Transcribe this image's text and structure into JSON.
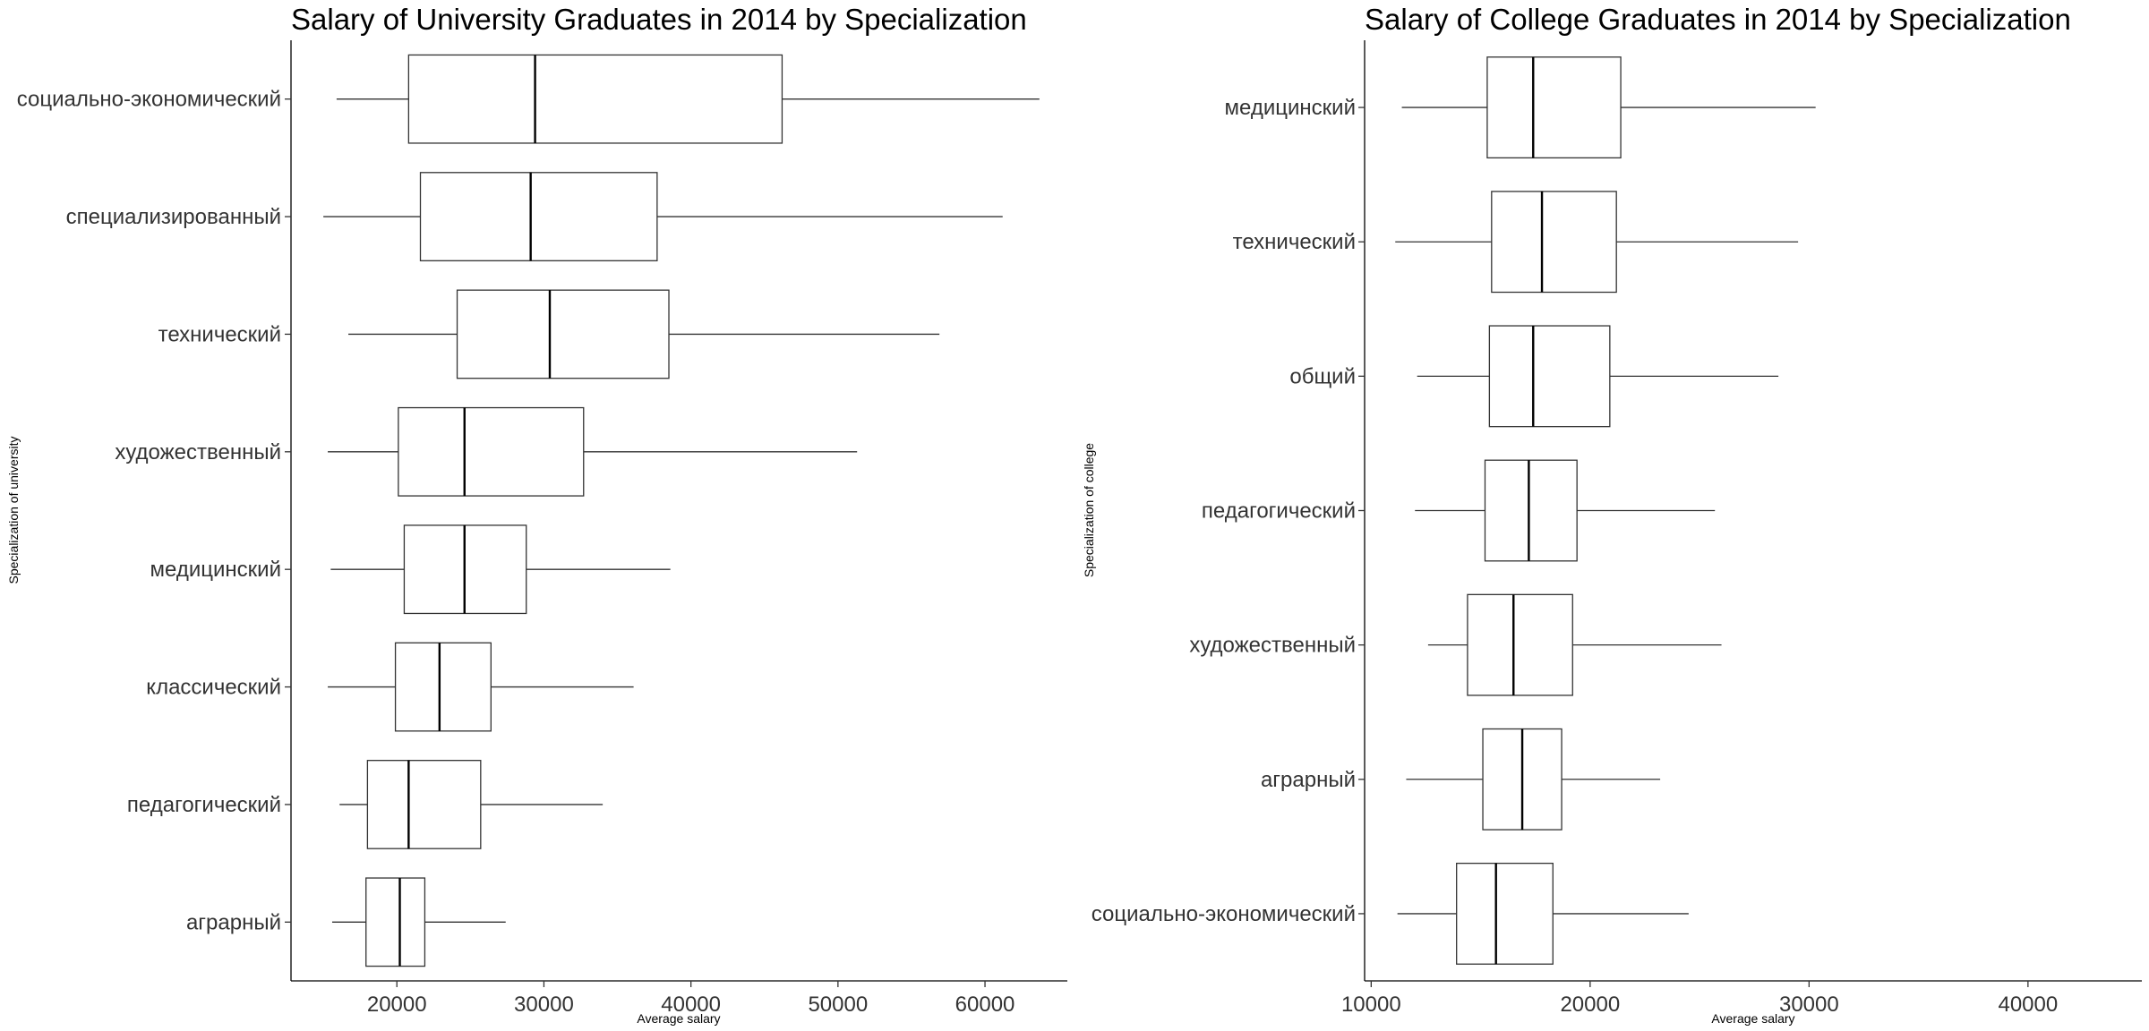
{
  "chart_data": [
    {
      "type": "boxplot",
      "title": "Salary of University Graduates in 2014 by Specialization",
      "xlabel": "Average salary",
      "ylabel": "Specialization of university",
      "xticks": [
        20000,
        30000,
        40000,
        50000,
        60000
      ],
      "xlim": [
        12800,
        65600
      ],
      "grid": false,
      "legend": "none",
      "categories": [
        "социально-экономический",
        "специализированный",
        "технический",
        "художественный",
        "медицинский",
        "классический",
        "педагогический",
        "аграрный"
      ],
      "boxes": [
        {
          "category": "социально-экономический",
          "whisker_low": 15900,
          "q1": 20800,
          "median": 29400,
          "q3": 46200,
          "whisker_high": 63700
        },
        {
          "category": "специализированный",
          "whisker_low": 15000,
          "q1": 21600,
          "median": 29100,
          "q3": 37700,
          "whisker_high": 61200
        },
        {
          "category": "технический",
          "whisker_low": 16700,
          "q1": 24100,
          "median": 30400,
          "q3": 38500,
          "whisker_high": 56900
        },
        {
          "category": "художественный",
          "whisker_low": 15300,
          "q1": 20100,
          "median": 24600,
          "q3": 32700,
          "whisker_high": 51300
        },
        {
          "category": "медицинский",
          "whisker_low": 15500,
          "q1": 20500,
          "median": 24600,
          "q3": 28800,
          "whisker_high": 38600
        },
        {
          "category": "классический",
          "whisker_low": 15300,
          "q1": 19900,
          "median": 22900,
          "q3": 26400,
          "whisker_high": 36100
        },
        {
          "category": "педагогический",
          "whisker_low": 16100,
          "q1": 18000,
          "median": 20800,
          "q3": 25700,
          "whisker_high": 34000
        },
        {
          "category": "аграрный",
          "whisker_low": 15600,
          "q1": 17900,
          "median": 20200,
          "q3": 21900,
          "whisker_high": 27400
        }
      ]
    },
    {
      "type": "boxplot",
      "title": "Salary of College Graduates in 2014 by Specialization",
      "xlabel": "Average salary",
      "ylabel": "Specialization of college",
      "xticks": [
        10000,
        20000,
        30000,
        40000
      ],
      "xlim": [
        9700,
        45200
      ],
      "grid": false,
      "legend": "none",
      "categories": [
        "медицинский",
        "технический",
        "общий",
        "педагогический",
        "художественный",
        "аграрный",
        "социально-экономический"
      ],
      "boxes": [
        {
          "category": "медицинский",
          "whisker_low": 11400,
          "q1": 15300,
          "median": 17400,
          "q3": 21400,
          "whisker_high": 30300
        },
        {
          "category": "технический",
          "whisker_low": 11100,
          "q1": 15500,
          "median": 17800,
          "q3": 21200,
          "whisker_high": 29500
        },
        {
          "category": "общий",
          "whisker_low": 12100,
          "q1": 15400,
          "median": 17400,
          "q3": 20900,
          "whisker_high": 28600
        },
        {
          "category": "педагогический",
          "whisker_low": 12000,
          "q1": 15200,
          "median": 17200,
          "q3": 19400,
          "whisker_high": 25700
        },
        {
          "category": "художественный",
          "whisker_low": 12600,
          "q1": 14400,
          "median": 16500,
          "q3": 19200,
          "whisker_high": 26000
        },
        {
          "category": "аграрный",
          "whisker_low": 11600,
          "q1": 15100,
          "median": 16900,
          "q3": 18700,
          "whisker_high": 23200
        },
        {
          "category": "социально-экономический",
          "whisker_low": 11200,
          "q1": 13900,
          "median": 15700,
          "q3": 18300,
          "whisker_high": 24500
        }
      ]
    }
  ]
}
